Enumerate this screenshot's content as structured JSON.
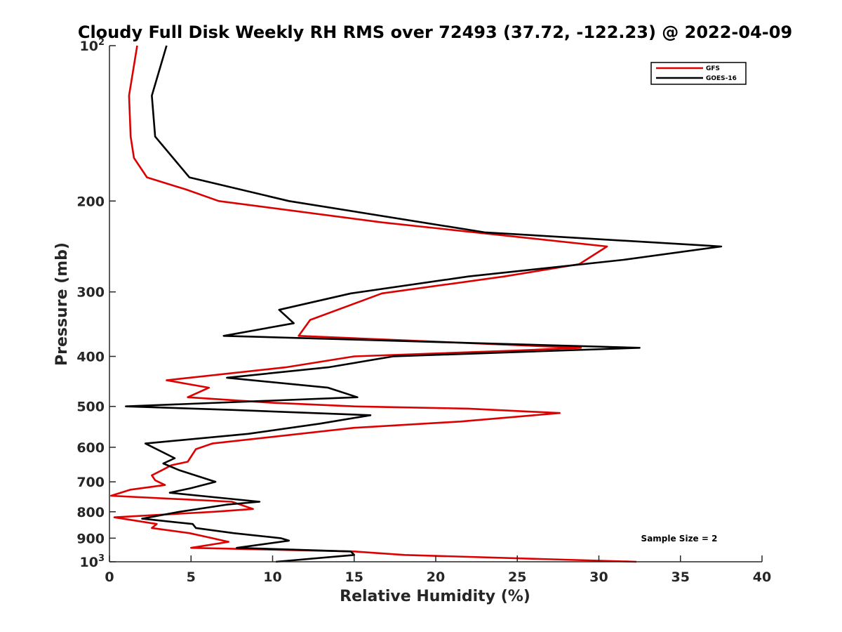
{
  "chart_data": {
    "type": "line",
    "title": "Cloudy Full Disk Weekly RH RMS over 72493 (37.72, -122.23) @ 2022-04-09",
    "xlabel": "Relative Humidity (%)",
    "ylabel": "Pressure (mb)",
    "xlim": [
      0,
      40
    ],
    "ylim": [
      100,
      1000
    ],
    "y_scale": "log",
    "y_reversed": true,
    "x_ticks": [
      0,
      5,
      10,
      15,
      20,
      25,
      30,
      35,
      40
    ],
    "x_tick_labels": [
      "0",
      "5",
      "10",
      "15",
      "20",
      "25",
      "30",
      "35",
      "40"
    ],
    "y_ticks": [
      100,
      200,
      300,
      400,
      500,
      600,
      700,
      800,
      900,
      1000
    ],
    "y_tick_labels": [
      {
        "base": "10",
        "exp": "2"
      },
      {
        "base": "200",
        "exp": ""
      },
      {
        "base": "300",
        "exp": ""
      },
      {
        "base": "400",
        "exp": ""
      },
      {
        "base": "500",
        "exp": ""
      },
      {
        "base": "600",
        "exp": ""
      },
      {
        "base": "700",
        "exp": ""
      },
      {
        "base": "800",
        "exp": ""
      },
      {
        "base": "900",
        "exp": ""
      },
      {
        "base": "10",
        "exp": "3"
      }
    ],
    "grid": false,
    "legend_position": "top-right",
    "annotation": "Sample Size = 2",
    "series": [
      {
        "name": "GFS",
        "color": "#dd0000",
        "points": [
          [
            1.7,
            100
          ],
          [
            1.2,
            125
          ],
          [
            1.3,
            150
          ],
          [
            1.5,
            165
          ],
          [
            2.3,
            180
          ],
          [
            4.7,
            190
          ],
          [
            6.7,
            200
          ],
          [
            16.7,
            220
          ],
          [
            30.5,
            245
          ],
          [
            28.8,
            265
          ],
          [
            24.2,
            280
          ],
          [
            16.7,
            302
          ],
          [
            12.3,
            340
          ],
          [
            11.6,
            365
          ],
          [
            28.9,
            385
          ],
          [
            24.7,
            390
          ],
          [
            15.0,
            400
          ],
          [
            10.8,
            420
          ],
          [
            3.5,
            445
          ],
          [
            6.1,
            460
          ],
          [
            4.8,
            480
          ],
          [
            10.0,
            492
          ],
          [
            15.0,
            500
          ],
          [
            22.0,
            505
          ],
          [
            27.6,
            515
          ],
          [
            21.5,
            535
          ],
          [
            15.0,
            550
          ],
          [
            6.3,
            590
          ],
          [
            5.3,
            605
          ],
          [
            4.8,
            640
          ],
          [
            3.8,
            650
          ],
          [
            3.2,
            665
          ],
          [
            2.6,
            680
          ],
          [
            2.8,
            695
          ],
          [
            3.4,
            710
          ],
          [
            1.3,
            725
          ],
          [
            0.1,
            745
          ],
          [
            7.5,
            765
          ],
          [
            8.8,
            790
          ],
          [
            6.4,
            800
          ],
          [
            0.3,
            820
          ],
          [
            2.9,
            845
          ],
          [
            2.6,
            860
          ],
          [
            4.9,
            880
          ],
          [
            6.3,
            900
          ],
          [
            7.3,
            915
          ],
          [
            5.0,
            940
          ],
          [
            15.0,
            955
          ],
          [
            18.1,
            970
          ],
          [
            32.3,
            1000
          ]
        ]
      },
      {
        "name": "GOES-16",
        "color": "#000000",
        "points": [
          [
            3.5,
            100
          ],
          [
            2.6,
            125
          ],
          [
            2.8,
            150
          ],
          [
            4.9,
            180
          ],
          [
            11.0,
            200
          ],
          [
            23.0,
            230
          ],
          [
            37.5,
            245
          ],
          [
            31.5,
            260
          ],
          [
            22.0,
            280
          ],
          [
            14.8,
            302
          ],
          [
            10.4,
            325
          ],
          [
            11.3,
            345
          ],
          [
            7.0,
            365
          ],
          [
            32.5,
            385
          ],
          [
            17.4,
            400
          ],
          [
            13.4,
            420
          ],
          [
            7.2,
            440
          ],
          [
            13.4,
            460
          ],
          [
            15.2,
            480
          ],
          [
            1.0,
            500
          ],
          [
            7.6,
            508
          ],
          [
            16.0,
            520
          ],
          [
            12.9,
            540
          ],
          [
            8.5,
            565
          ],
          [
            2.2,
            590
          ],
          [
            4.0,
            630
          ],
          [
            3.3,
            645
          ],
          [
            4.3,
            665
          ],
          [
            6.5,
            700
          ],
          [
            5.0,
            720
          ],
          [
            3.7,
            735
          ],
          [
            9.2,
            765
          ],
          [
            7.2,
            775
          ],
          [
            4.3,
            800
          ],
          [
            2.0,
            825
          ],
          [
            5.1,
            845
          ],
          [
            5.3,
            860
          ],
          [
            7.6,
            880
          ],
          [
            10.5,
            900
          ],
          [
            11.0,
            910
          ],
          [
            7.8,
            940
          ],
          [
            14.8,
            955
          ],
          [
            15.0,
            970
          ],
          [
            10.2,
            1000
          ]
        ]
      }
    ]
  }
}
